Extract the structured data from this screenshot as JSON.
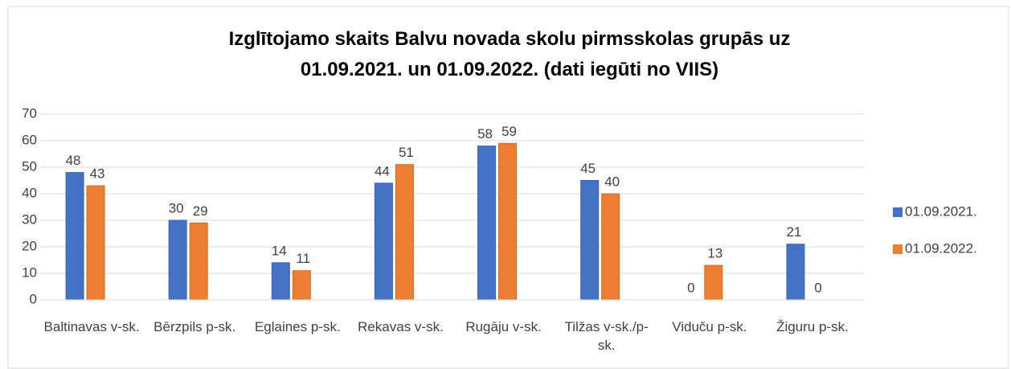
{
  "chart_data": {
    "type": "bar",
    "title": "Izglītojamo skaits Balvu novada skolu pirmsskolas grupās uz 01.09.2021. un 01.09.2022. (dati iegūti no VIIS)",
    "categories": [
      "Baltinavas v-sk.",
      "Bērzpils p-sk.",
      "Eglaines p-sk.",
      "Rekavas v-sk.",
      "Rugāju v-sk.",
      "Tilžas v-sk./p-sk.",
      "Viduču p-sk.",
      "Žiguru p-sk."
    ],
    "series": [
      {
        "name": "01.09.2021.",
        "color": "#4472c4",
        "values": [
          48,
          30,
          14,
          44,
          58,
          45,
          0,
          21
        ]
      },
      {
        "name": "01.09.2022.",
        "color": "#ed7d31",
        "values": [
          43,
          29,
          11,
          51,
          59,
          40,
          13,
          0
        ]
      }
    ],
    "ylim": [
      0,
      70
    ],
    "yticks": [
      0,
      10,
      20,
      30,
      40,
      50,
      60,
      70
    ],
    "grid": true,
    "legend": "right"
  }
}
